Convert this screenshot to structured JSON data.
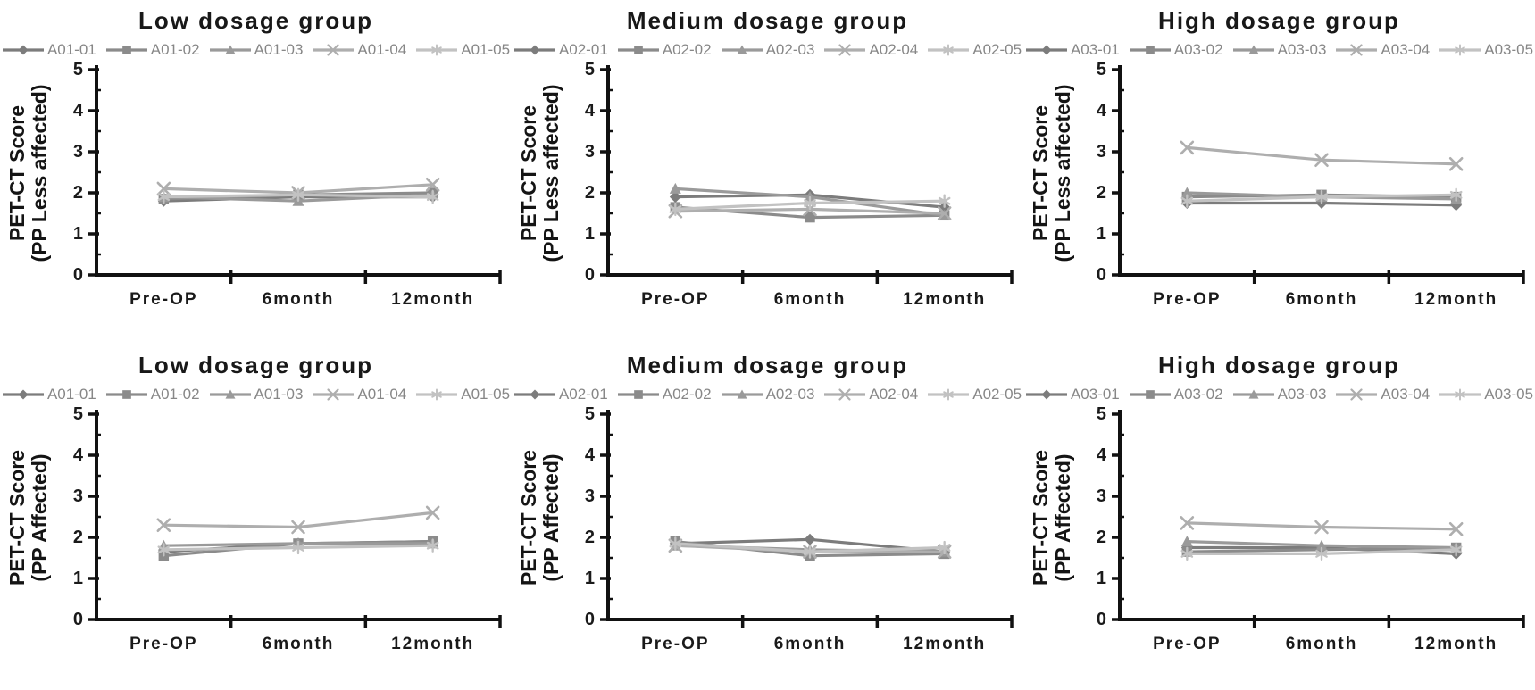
{
  "figure": {
    "background": "#ffffff",
    "axis_color": "#111111",
    "title_color": "#181818",
    "tick_label_color": "#1a1a1a",
    "category_label_color": "#1a1a1a",
    "legend_text_color": "#878787"
  },
  "chart_data": [
    {
      "type": "line",
      "title": "Low dosage group",
      "ylabel_line1": "PET-CT Score",
      "ylabel_line2": "(PP Less affected)",
      "categories": [
        "Pre-OP",
        "6month",
        "12month"
      ],
      "ylim": [
        0,
        5
      ],
      "yticks": [
        0,
        1,
        2,
        3,
        4,
        5
      ],
      "grid": false,
      "legend_position": "top",
      "series": [
        {
          "name": "A01-01",
          "marker": "diamond",
          "color": "#7c7c7c",
          "values": [
            1.8,
            1.9,
            1.9
          ]
        },
        {
          "name": "A01-02",
          "marker": "square",
          "color": "#8b8b8b",
          "values": [
            1.85,
            1.95,
            2.0
          ]
        },
        {
          "name": "A01-03",
          "marker": "triangle",
          "color": "#9a9a9a",
          "values": [
            1.9,
            1.8,
            1.95
          ]
        },
        {
          "name": "A01-04",
          "marker": "x",
          "color": "#aeaeae",
          "values": [
            2.1,
            2.0,
            2.2
          ]
        },
        {
          "name": "A01-05",
          "marker": "asterisk",
          "color": "#c2c2c2",
          "values": [
            1.9,
            1.95,
            1.9
          ]
        }
      ]
    },
    {
      "type": "line",
      "title": "Medium dosage group",
      "ylabel_line1": "PET-CT Score",
      "ylabel_line2": "(PP Less affected)",
      "categories": [
        "Pre-OP",
        "6month",
        "12month"
      ],
      "ylim": [
        0,
        5
      ],
      "yticks": [
        0,
        1,
        2,
        3,
        4,
        5
      ],
      "grid": false,
      "legend_position": "top",
      "series": [
        {
          "name": "A02-01",
          "marker": "diamond",
          "color": "#7c7c7c",
          "values": [
            1.9,
            1.95,
            1.65
          ]
        },
        {
          "name": "A02-02",
          "marker": "square",
          "color": "#8b8b8b",
          "values": [
            1.65,
            1.4,
            1.45
          ]
        },
        {
          "name": "A02-03",
          "marker": "triangle",
          "color": "#9a9a9a",
          "values": [
            2.1,
            1.9,
            1.45
          ]
        },
        {
          "name": "A02-04",
          "marker": "x",
          "color": "#aeaeae",
          "values": [
            1.55,
            1.6,
            1.5
          ]
        },
        {
          "name": "A02-05",
          "marker": "asterisk",
          "color": "#c2c2c2",
          "values": [
            1.6,
            1.75,
            1.8
          ]
        }
      ]
    },
    {
      "type": "line",
      "title": "High dosage group",
      "ylabel_line1": "PET-CT Score",
      "ylabel_line2": "(PP Less affected)",
      "categories": [
        "Pre-OP",
        "6month",
        "12month"
      ],
      "ylim": [
        0,
        5
      ],
      "yticks": [
        0,
        1,
        2,
        3,
        4,
        5
      ],
      "grid": false,
      "legend_position": "top",
      "series": [
        {
          "name": "A03-01",
          "marker": "diamond",
          "color": "#7c7c7c",
          "values": [
            1.75,
            1.75,
            1.7
          ]
        },
        {
          "name": "A03-02",
          "marker": "square",
          "color": "#8b8b8b",
          "values": [
            1.9,
            1.95,
            1.9
          ]
        },
        {
          "name": "A03-03",
          "marker": "triangle",
          "color": "#9a9a9a",
          "values": [
            2.0,
            1.9,
            1.85
          ]
        },
        {
          "name": "A03-04",
          "marker": "x",
          "color": "#aeaeae",
          "values": [
            3.1,
            2.8,
            2.7
          ]
        },
        {
          "name": "A03-05",
          "marker": "asterisk",
          "color": "#c2c2c2",
          "values": [
            1.8,
            1.9,
            1.95
          ]
        }
      ]
    },
    {
      "type": "line",
      "title": "Low dosage group",
      "ylabel_line1": "PET-CT Score",
      "ylabel_line2": "(PP Affected)",
      "categories": [
        "Pre-OP",
        "6month",
        "12month"
      ],
      "ylim": [
        0,
        5
      ],
      "yticks": [
        0,
        1,
        2,
        3,
        4,
        5
      ],
      "grid": false,
      "legend_position": "top",
      "series": [
        {
          "name": "A01-01",
          "marker": "diamond",
          "color": "#7c7c7c",
          "values": [
            1.65,
            1.85,
            1.9
          ]
        },
        {
          "name": "A01-02",
          "marker": "square",
          "color": "#8b8b8b",
          "values": [
            1.55,
            1.85,
            1.9
          ]
        },
        {
          "name": "A01-03",
          "marker": "triangle",
          "color": "#9a9a9a",
          "values": [
            1.8,
            1.85,
            1.85
          ]
        },
        {
          "name": "A01-04",
          "marker": "x",
          "color": "#aeaeae",
          "values": [
            2.3,
            2.25,
            2.6
          ]
        },
        {
          "name": "A01-05",
          "marker": "asterisk",
          "color": "#c2c2c2",
          "values": [
            1.7,
            1.75,
            1.8
          ]
        }
      ]
    },
    {
      "type": "line",
      "title": "Medium dosage group",
      "ylabel_line1": "PET-CT Score",
      "ylabel_line2": "(PP Affected)",
      "categories": [
        "Pre-OP",
        "6month",
        "12month"
      ],
      "ylim": [
        0,
        5
      ],
      "yticks": [
        0,
        1,
        2,
        3,
        4,
        5
      ],
      "grid": false,
      "legend_position": "top",
      "series": [
        {
          "name": "A02-01",
          "marker": "diamond",
          "color": "#7c7c7c",
          "values": [
            1.85,
            1.95,
            1.65
          ]
        },
        {
          "name": "A02-02",
          "marker": "square",
          "color": "#8b8b8b",
          "values": [
            1.9,
            1.55,
            1.6
          ]
        },
        {
          "name": "A02-03",
          "marker": "triangle",
          "color": "#9a9a9a",
          "values": [
            1.8,
            1.7,
            1.65
          ]
        },
        {
          "name": "A02-04",
          "marker": "x",
          "color": "#aeaeae",
          "values": [
            1.8,
            1.65,
            1.65
          ]
        },
        {
          "name": "A02-05",
          "marker": "asterisk",
          "color": "#c2c2c2",
          "values": [
            1.85,
            1.65,
            1.75
          ]
        }
      ]
    },
    {
      "type": "line",
      "title": "High dosage group",
      "ylabel_line1": "PET-CT Score",
      "ylabel_line2": "(PP Affected)",
      "categories": [
        "Pre-OP",
        "6month",
        "12month"
      ],
      "ylim": [
        0,
        5
      ],
      "yticks": [
        0,
        1,
        2,
        3,
        4,
        5
      ],
      "grid": false,
      "legend_position": "top",
      "series": [
        {
          "name": "A03-01",
          "marker": "diamond",
          "color": "#7c7c7c",
          "values": [
            1.75,
            1.75,
            1.6
          ]
        },
        {
          "name": "A03-02",
          "marker": "square",
          "color": "#8b8b8b",
          "values": [
            1.65,
            1.7,
            1.75
          ]
        },
        {
          "name": "A03-03",
          "marker": "triangle",
          "color": "#9a9a9a",
          "values": [
            1.9,
            1.8,
            1.75
          ]
        },
        {
          "name": "A03-04",
          "marker": "x",
          "color": "#aeaeae",
          "values": [
            2.35,
            2.25,
            2.2
          ]
        },
        {
          "name": "A03-05",
          "marker": "asterisk",
          "color": "#c2c2c2",
          "values": [
            1.6,
            1.6,
            1.7
          ]
        }
      ]
    }
  ]
}
